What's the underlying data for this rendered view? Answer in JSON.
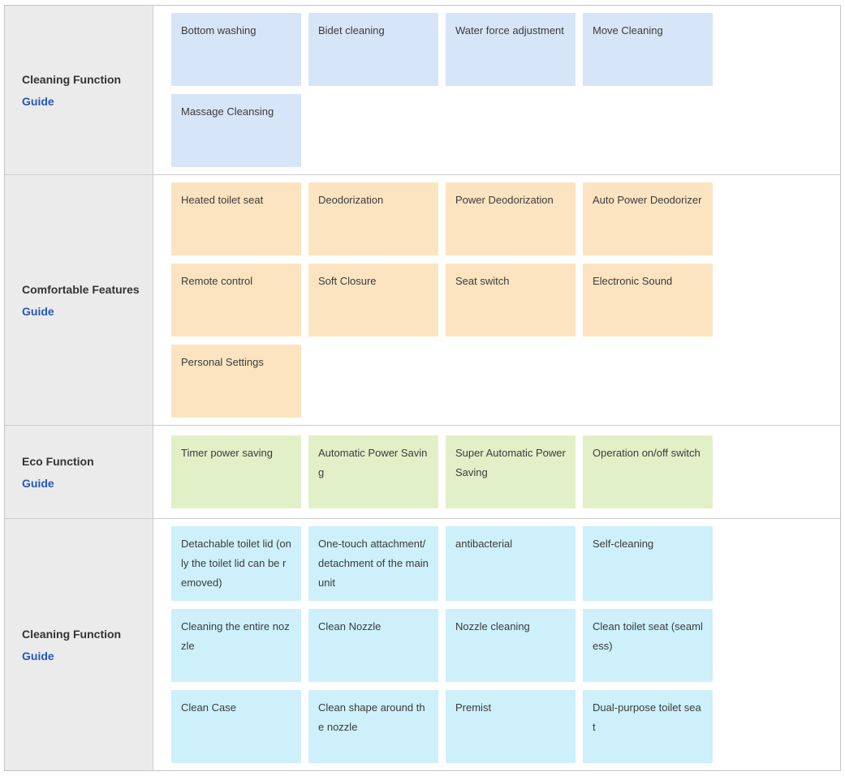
{
  "colors": {
    "blue": "#d7e5f8",
    "orange": "#fce4c1",
    "green": "#e2f0c8",
    "cyan": "#cdf0fa",
    "sidebar_bg": "#ebebeb",
    "border": "#cccccc",
    "link": "#2458b8"
  },
  "table": {
    "rows": [
      {
        "category": "Cleaning Function",
        "guide_label": "Guide",
        "theme": "blue",
        "cards": [
          "Bottom washing",
          "Bidet cleaning",
          "Water force adjustment",
          "Move Cleaning",
          "Massage Cleansing"
        ]
      },
      {
        "category": "Comfortable Features",
        "guide_label": "Guide",
        "theme": "orange",
        "cards": [
          "Heated toilet seat",
          "Deodorization",
          "Power Deodorization",
          "Auto Power Deodorizer",
          "Remote control",
          "Soft Closure",
          "Seat switch",
          "Electronic Sound",
          "Personal Settings"
        ]
      },
      {
        "category": "Eco Function",
        "guide_label": "Guide",
        "theme": "green",
        "cards": [
          "Timer power saving",
          "Automatic Power Saving",
          "Super Automatic Power Saving",
          "Operation on/off switch"
        ]
      },
      {
        "category": "Cleaning Function",
        "guide_label": "Guide",
        "theme": "cyan",
        "cards": [
          "Detachable toilet lid (only the toilet lid can be removed)",
          "One-touch attachment/detachment of the main unit",
          "antibacterial",
          "Self-cleaning",
          "Cleaning the entire nozzle",
          "Clean Nozzle",
          "Nozzle cleaning",
          "Clean toilet seat (seamless)",
          "Clean Case",
          "Clean shape around the nozzle",
          "Premist",
          "Dual-purpose toilet seat"
        ]
      }
    ]
  }
}
